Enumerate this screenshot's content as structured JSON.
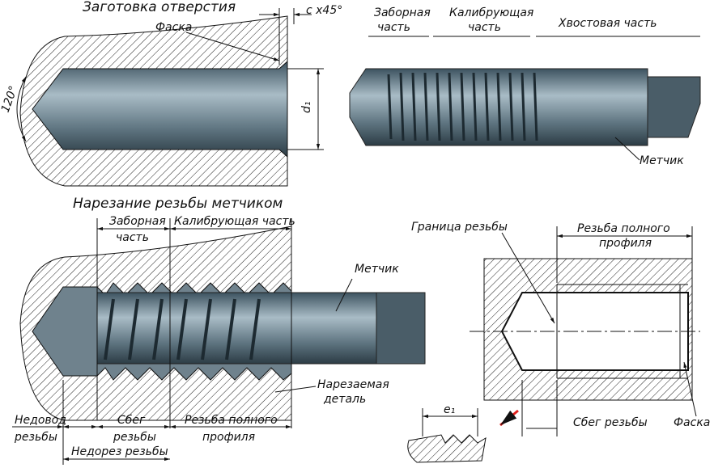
{
  "blank_hole": {
    "title": "Заготовка отверстия",
    "chamfer": "Фаска",
    "chamfer_size": "c x45°",
    "angle": "120°",
    "diameter": "d₁"
  },
  "tap": {
    "intake": [
      "Заборная",
      "часть"
    ],
    "calibrating": [
      "Калибрующая",
      "часть"
    ],
    "shank": "Хвостовая  часть",
    "label": "Метчик"
  },
  "threading": {
    "title": "Нарезание резьбы метчиком",
    "intake": [
      "Заборная",
      "часть"
    ],
    "calibrating": "Калибрующая часть",
    "tap": "Метчик",
    "workpiece": [
      "Нарезаемая",
      "деталь"
    ],
    "undershoot": [
      "Недовод",
      "резьбы"
    ],
    "runout": [
      "Сбег",
      "резьбы"
    ],
    "full_profile": [
      "Резьба полного",
      "профиля"
    ],
    "undercut": "Недорез резьбы"
  },
  "thread_section": {
    "boundary": "Граница резьбы",
    "full_profile": [
      "Резьба полного",
      "профиля"
    ],
    "runout": "Сбег резьбы",
    "chamfer": "Фаска",
    "e": "e₁"
  }
}
